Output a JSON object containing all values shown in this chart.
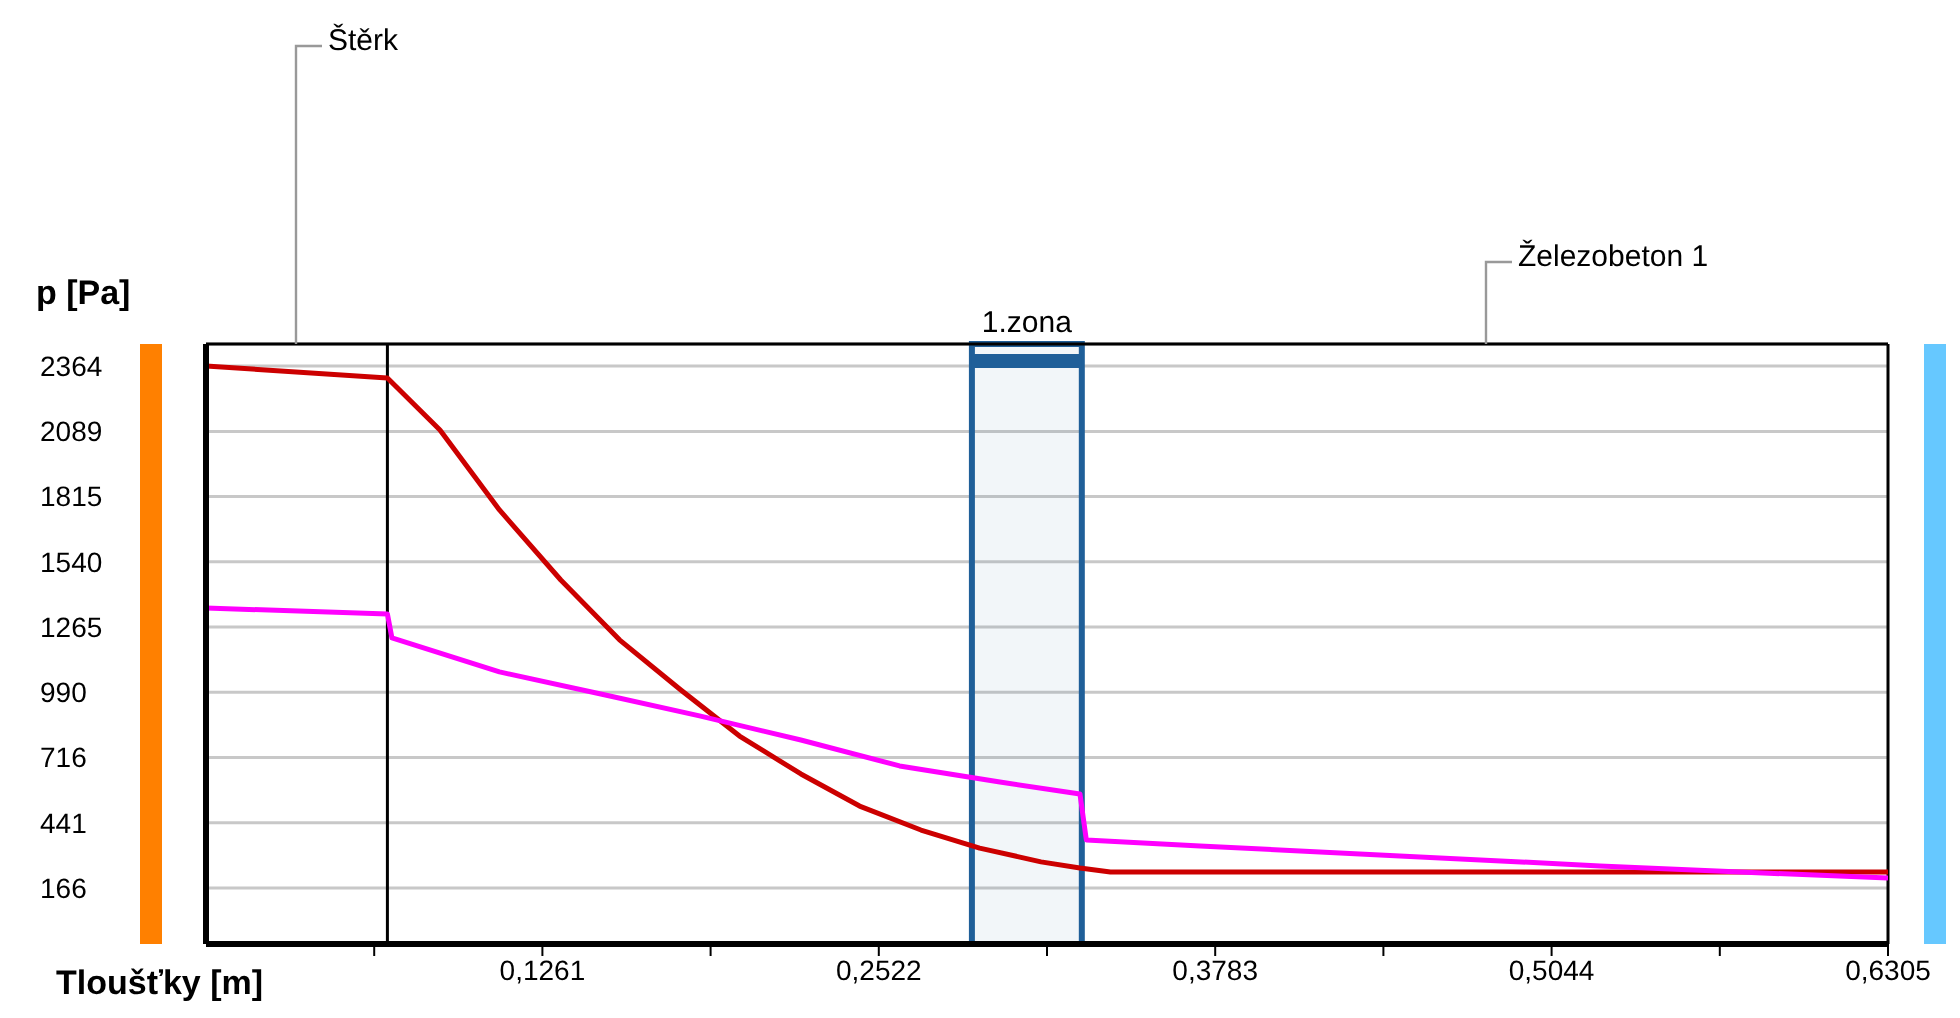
{
  "chart_data": {
    "type": "line",
    "xlabel": "Tloušťky [m]",
    "ylabel": "p [Pa]",
    "marker": "none",
    "grid": "y",
    "xlim": [
      0,
      0.6305
    ],
    "ylim": [
      -70,
      2457
    ],
    "xticks": [
      {
        "value": 0.06305,
        "label": null
      },
      {
        "value": 0.1261,
        "label": "0,1261"
      },
      {
        "value": 0.18915,
        "label": null
      },
      {
        "value": 0.2522,
        "label": "0,2522"
      },
      {
        "value": 0.31525,
        "label": null
      },
      {
        "value": 0.3783,
        "label": "0,3783"
      },
      {
        "value": 0.44135,
        "label": null
      },
      {
        "value": 0.5044,
        "label": "0,5044"
      },
      {
        "value": 0.56745,
        "label": null
      },
      {
        "value": 0.6305,
        "label": "0,6305"
      }
    ],
    "yticks": [
      166,
      441,
      716,
      990,
      1265,
      1540,
      1815,
      2089,
      2364
    ],
    "series": [
      {
        "color": "#cc0000",
        "x": [
          0,
          0.068,
          0.0877,
          0.11,
          0.133,
          0.155,
          0.178,
          0.2,
          0.223,
          0.245,
          0.268,
          0.29,
          0.313,
          0.3276,
          0.339,
          0.6305
        ],
        "values": [
          2364,
          2314,
          2095,
          1758,
          1463,
          1211,
          1000,
          806,
          646,
          511,
          410,
          334,
          276,
          250,
          233,
          233
        ]
      },
      {
        "color": "#ff00ff",
        "x": [
          0,
          0.068,
          0.0697,
          0.11,
          0.148,
          0.185,
          0.223,
          0.26,
          0.2976,
          0.3276,
          0.33,
          0.3726,
          0.4475,
          0.5225,
          0.575,
          0.6305
        ],
        "values": [
          1345,
          1320,
          1219,
          1076,
          983,
          891,
          789,
          680,
          612,
          562,
          368,
          343,
          301,
          259,
          233,
          208
        ]
      }
    ],
    "ref_lines": [
      {
        "axis": "x",
        "value": 0.068,
        "color": "#000000"
      }
    ],
    "bands": [
      {
        "axis": "x",
        "from": 0.2871,
        "to": 0.3283,
        "label": "1.zona",
        "color": "#1f5f99"
      }
    ],
    "annotations": [
      "Štěrk",
      "Železobeton 1"
    ]
  }
}
